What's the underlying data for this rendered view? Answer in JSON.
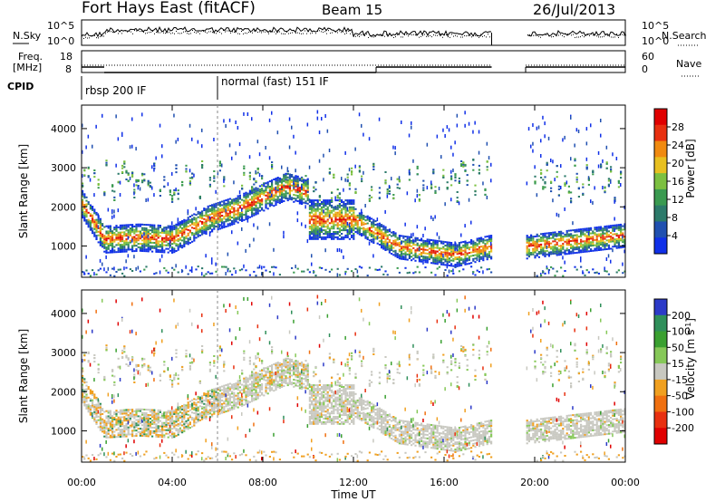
{
  "header": {
    "site": "Fort Hays East (fitACF)",
    "beam": "Beam 15",
    "date": "26/Jul/2013"
  },
  "noise_panel": {
    "left_label": "N.Sky",
    "right_label": "N.Search",
    "left_ticks": [
      "10^5",
      "10^0"
    ],
    "right_ticks": [
      "10^5",
      "10^0"
    ]
  },
  "freq_panel": {
    "left_label_1": "Freq.",
    "left_label_2": "[MHz]",
    "right_label": "Nave",
    "left_ticks": [
      "18",
      "8"
    ],
    "right_ticks": [
      "60",
      "0"
    ],
    "freq_mhz_segments": [
      {
        "start_h": 0.0,
        "end_h": 1.0,
        "value": 11
      },
      {
        "start_h": 1.0,
        "end_h": 13.0,
        "value": 8
      },
      {
        "start_h": 13.0,
        "end_h": 18.1,
        "value": 11
      },
      {
        "start_h": 19.6,
        "end_h": 24.0,
        "value": 11
      }
    ]
  },
  "cpid": {
    "label": "CPID",
    "segments": [
      {
        "name": "rbsp 200 IF",
        "start_h": 0.0
      },
      {
        "name": "normal (fast) 151 IF",
        "start_h": 6.0
      }
    ]
  },
  "chart_data": [
    {
      "type": "heatmap",
      "quantity": "Power",
      "ylabel": "Slant Range [km]",
      "xlabel": "",
      "ylim": [
        200,
        4600
      ],
      "xlim_hours": [
        0,
        24
      ],
      "yticks": [
        "1000",
        "2000",
        "3000",
        "4000"
      ],
      "colorbar_label": "Power [dB]",
      "colorbar_ticks": [
        "4",
        "8",
        "12",
        "16",
        "20",
        "24",
        "28"
      ],
      "colorbar_range": [
        0,
        32
      ],
      "data_gap_hours": [
        18.1,
        19.6
      ],
      "main_echo_band_km": [
        {
          "t": 0.0,
          "center": 2100
        },
        {
          "t": 1.0,
          "center": 1200
        },
        {
          "t": 2.5,
          "center": 1250
        },
        {
          "t": 4.0,
          "center": 1200
        },
        {
          "t": 5.5,
          "center": 1700
        },
        {
          "t": 7.0,
          "center": 2000
        },
        {
          "t": 9.0,
          "center": 2550
        },
        {
          "t": 10.0,
          "center": 2400
        }
      ],
      "late_echo_band_km": [
        {
          "t": 12.0,
          "center": 1700
        },
        {
          "t": 14.0,
          "center": 1000
        },
        {
          "t": 16.5,
          "center": 800
        },
        {
          "t": 18.0,
          "center": 1000
        },
        {
          "t": 19.6,
          "center": 1000
        },
        {
          "t": 24.0,
          "center": 1300
        }
      ]
    },
    {
      "type": "heatmap",
      "quantity": "Velocity",
      "ylabel": "Slant Range [km]",
      "xlabel": "Time UT",
      "ylim": [
        200,
        4600
      ],
      "xlim_hours": [
        0,
        24
      ],
      "yticks": [
        "1000",
        "2000",
        "3000",
        "4000"
      ],
      "xticks": [
        "00:00",
        "04:00",
        "08:00",
        "12:00",
        "16:00",
        "20:00",
        "00:00"
      ],
      "colorbar_label": "Velocity [m s-1]",
      "colorbar_ticks": [
        "200",
        "100",
        "50",
        "15",
        "-15",
        "-50",
        "-100",
        "-200"
      ],
      "colorbar_colors": [
        "#2c3ac8",
        "#2f8f5a",
        "#3aa030",
        "#86c858",
        "#c8c8c0",
        "#f0a020",
        "#f07010",
        "#e83010",
        "#e00000"
      ],
      "data_gap_hours": [
        18.1,
        19.6
      ]
    }
  ],
  "power_colors": [
    "#1030e8",
    "#2050b0",
    "#2c7a6a",
    "#3a9a50",
    "#7cc040",
    "#e8c020",
    "#f08a10",
    "#e83010",
    "#e00000"
  ],
  "axis_color": "#000000"
}
